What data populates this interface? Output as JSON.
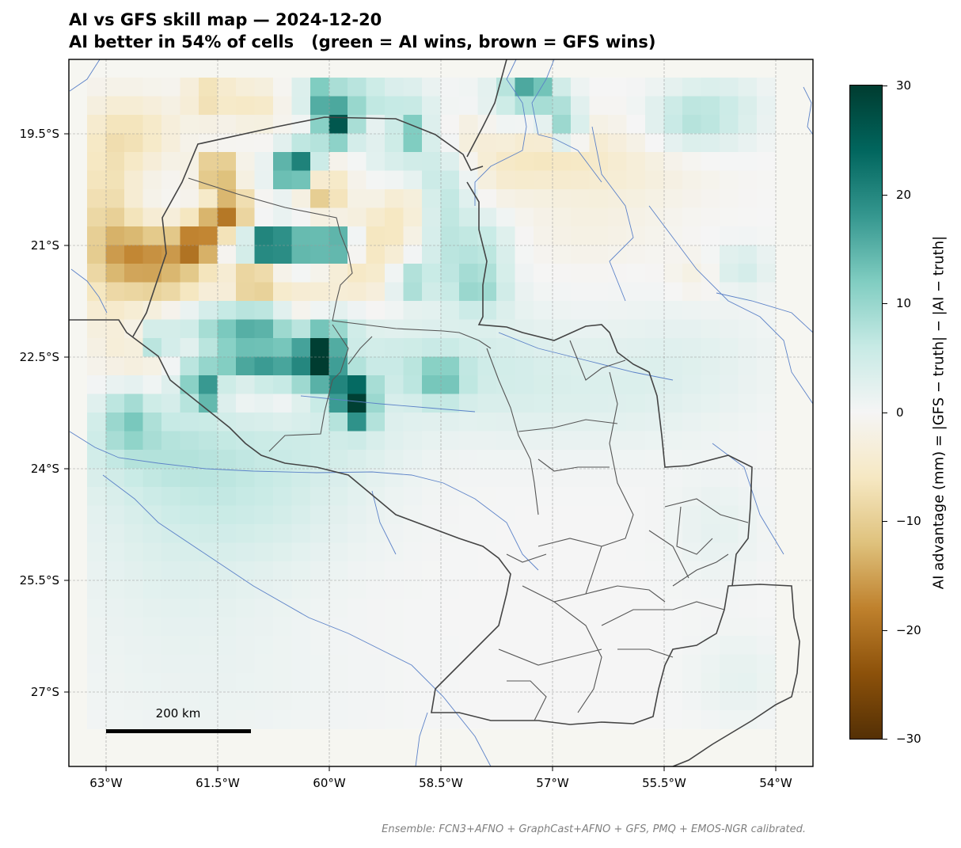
{
  "title": "AI vs GFS skill map — 2024-12-20",
  "subtitle": "AI better in 54% of cells   (green = AI wins, brown = GFS wins)",
  "x_ticks": [
    "63°W",
    "61.5°W",
    "60°W",
    "58.5°W",
    "57°W",
    "55.5°W",
    "54°W"
  ],
  "y_ticks": [
    "19.5°S",
    "21°S",
    "22.5°S",
    "24°S",
    "25.5°S",
    "27°S"
  ],
  "colorbar": {
    "label": "AI advantage (mm) = |GFS − truth| − |AI − truth|",
    "ticks": [
      "30",
      "20",
      "10",
      "0",
      "−10",
      "−20",
      "−30"
    ],
    "range": [
      -30,
      30
    ],
    "colormap": "BrBG",
    "colors": [
      "#543005",
      "#8c510a",
      "#bf812d",
      "#dfc27d",
      "#f6e8c3",
      "#f5f5f5",
      "#c7eae5",
      "#80cdc1",
      "#35978f",
      "#01665e",
      "#003c30"
    ]
  },
  "scale_bar": {
    "label": "200 km"
  },
  "footnote": "Ensemble: FCN3+AFNO + GraphCast+AFNO + GFS, PMQ + EMOS-NGR calibrated.",
  "chart_data": {
    "type": "heatmap",
    "xlim": [
      -63.5,
      -53.5
    ],
    "ylim": [
      -28.0,
      -18.5
    ],
    "lon_start": -63.13,
    "lat_start": -18.87,
    "cell_deg": 0.25,
    "n_cols": 37,
    "n_rows": 35,
    "grid_lines": true,
    "blobs": [
      [
        -59.9,
        -19.4,
        0.25,
        0.25,
        28
      ],
      [
        -60.1,
        -19.0,
        0.25,
        0.2,
        18
      ],
      [
        -59.6,
        -19.0,
        0.3,
        0.2,
        10
      ],
      [
        -59.0,
        -19.1,
        0.4,
        0.3,
        6
      ],
      [
        -58.9,
        -19.5,
        0.2,
        0.2,
        14
      ],
      [
        -57.3,
        -18.9,
        0.3,
        0.2,
        14
      ],
      [
        -57.5,
        -19.1,
        0.5,
        0.4,
        5
      ],
      [
        -56.9,
        -19.2,
        0.3,
        0.3,
        8
      ],
      [
        -56.8,
        -19.5,
        0.2,
        0.2,
        12
      ],
      [
        -55.2,
        -19.3,
        0.5,
        0.4,
        7
      ],
      [
        -54.6,
        -19.2,
        0.5,
        0.5,
        4
      ],
      [
        -60.5,
        -20.0,
        0.25,
        0.25,
        22
      ],
      [
        -60.3,
        -19.8,
        0.3,
        0.3,
        12
      ],
      [
        -59.5,
        -19.7,
        0.4,
        0.3,
        4
      ],
      [
        -59.0,
        -19.9,
        0.4,
        0.3,
        3
      ],
      [
        -58.5,
        -20.3,
        0.4,
        0.6,
        7
      ],
      [
        -58.3,
        -21.1,
        0.5,
        0.5,
        6
      ],
      [
        -58.0,
        -21.6,
        0.4,
        0.3,
        8
      ],
      [
        -57.8,
        -21.0,
        0.3,
        0.4,
        4
      ],
      [
        -60.8,
        -21.0,
        0.2,
        0.2,
        28
      ],
      [
        -60.4,
        -21.0,
        0.4,
        0.25,
        18
      ],
      [
        -59.9,
        -21.0,
        0.25,
        0.2,
        22
      ],
      [
        -61.2,
        -21.0,
        0.3,
        0.2,
        8
      ],
      [
        -58.9,
        -21.5,
        0.25,
        0.25,
        10
      ],
      [
        -60.1,
        -22.5,
        0.25,
        0.35,
        27
      ],
      [
        -59.9,
        -22.0,
        0.4,
        0.3,
        7
      ],
      [
        -59.7,
        -23.0,
        0.25,
        0.25,
        27
      ],
      [
        -59.6,
        -23.3,
        0.2,
        0.2,
        14
      ],
      [
        -60.5,
        -22.6,
        0.4,
        0.4,
        12
      ],
      [
        -61.6,
        -22.0,
        0.8,
        0.25,
        8
      ],
      [
        -60.9,
        -22.0,
        0.4,
        0.3,
        12
      ],
      [
        -62.3,
        -22.3,
        0.2,
        0.2,
        14
      ],
      [
        -61.3,
        -22.4,
        0.5,
        0.4,
        9
      ],
      [
        -61.0,
        -22.6,
        0.4,
        0.2,
        10
      ],
      [
        -61.8,
        -22.8,
        0.3,
        0.3,
        10
      ],
      [
        -61.6,
        -23.0,
        0.2,
        0.2,
        16
      ],
      [
        -59.2,
        -22.6,
        1.0,
        0.6,
        5
      ],
      [
        -58.5,
        -22.8,
        0.3,
        0.3,
        10
      ],
      [
        -57.8,
        -22.6,
        1.0,
        0.8,
        3
      ],
      [
        -56.5,
        -23.0,
        1.6,
        0.8,
        2.5
      ],
      [
        -62.7,
        -23.3,
        0.3,
        0.4,
        8
      ],
      [
        -62.4,
        -23.6,
        1.2,
        0.6,
        5
      ],
      [
        -61.5,
        -24.2,
        1.6,
        0.8,
        3.5
      ],
      [
        -60.0,
        -23.6,
        1.2,
        0.5,
        3
      ],
      [
        -62.0,
        -25.2,
        1.5,
        1.3,
        2.5
      ],
      [
        -55.2,
        -22.5,
        1.2,
        0.8,
        2
      ],
      [
        -54.5,
        -21.3,
        0.4,
        0.3,
        5
      ],
      [
        -54.8,
        -24.8,
        0.6,
        0.7,
        2
      ],
      [
        -54.5,
        -26.8,
        0.6,
        0.6,
        2
      ],
      [
        -60.5,
        -24.5,
        1.5,
        1.0,
        1.5
      ],
      [
        -61.5,
        -27.0,
        2.0,
        1.0,
        1.0
      ],
      [
        -63.0,
        -20.8,
        0.4,
        1.2,
        -9
      ],
      [
        -62.5,
        -21.1,
        0.5,
        0.4,
        -12
      ],
      [
        -61.8,
        -21.0,
        0.3,
        0.3,
        -17
      ],
      [
        -62.2,
        -21.5,
        0.6,
        0.5,
        -8
      ],
      [
        -61.5,
        -20.7,
        0.3,
        0.3,
        -11
      ],
      [
        -61.5,
        -20.0,
        0.25,
        0.2,
        -19
      ],
      [
        -61.3,
        -20.5,
        0.25,
        0.25,
        -14
      ],
      [
        -60.1,
        -20.3,
        0.3,
        0.3,
        -11
      ],
      [
        -62.6,
        -19.5,
        0.6,
        0.5,
        -6
      ],
      [
        -61.6,
        -19.0,
        0.3,
        0.3,
        -8
      ],
      [
        -61.0,
        -19.1,
        0.3,
        0.3,
        -6
      ],
      [
        -60.0,
        -19.7,
        0.6,
        0.4,
        -5
      ],
      [
        -61.0,
        -21.5,
        0.3,
        0.3,
        -12
      ],
      [
        -60.4,
        -21.8,
        1.0,
        0.35,
        -6
      ],
      [
        -59.6,
        -21.3,
        0.5,
        0.4,
        -5
      ],
      [
        -59.2,
        -20.8,
        0.5,
        0.4,
        -6
      ],
      [
        -58.9,
        -20.4,
        0.3,
        0.3,
        -5
      ],
      [
        -62.4,
        -22.5,
        0.6,
        0.4,
        -4
      ],
      [
        -61.4,
        -23.0,
        0.3,
        0.2,
        -5
      ],
      [
        -60.6,
        -23.0,
        0.3,
        0.3,
        -4
      ],
      [
        -57.0,
        -19.7,
        0.8,
        0.5,
        -5
      ],
      [
        -57.7,
        -20.0,
        0.5,
        0.4,
        -3
      ],
      [
        -56.0,
        -20.0,
        1.2,
        0.5,
        -3
      ],
      [
        -56.5,
        -20.8,
        1.0,
        0.5,
        -2
      ],
      [
        -55.0,
        -21.4,
        0.4,
        0.3,
        -3
      ],
      [
        -58.1,
        -19.5,
        0.3,
        0.3,
        -3
      ]
    ]
  }
}
